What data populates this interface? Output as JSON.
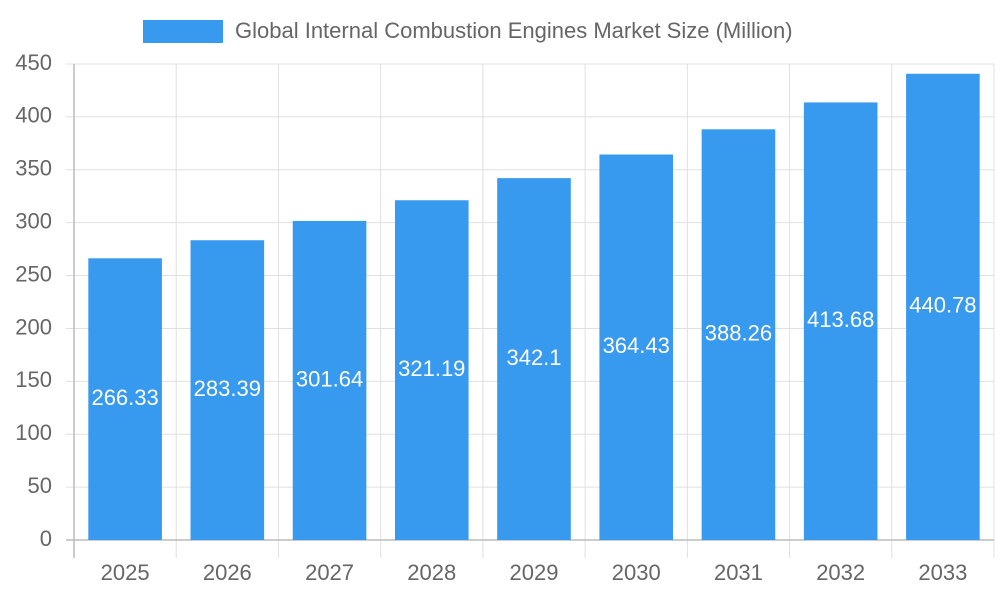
{
  "chart_data": {
    "type": "bar",
    "categories": [
      "2025",
      "2026",
      "2027",
      "2028",
      "2029",
      "2030",
      "2031",
      "2032",
      "2033"
    ],
    "series": [
      {
        "name": "Global Internal Combustion Engines Market Size (Million)",
        "color": "#389aee",
        "values": [
          266.33,
          283.39,
          301.64,
          321.19,
          342.1,
          364.43,
          388.26,
          413.68,
          440.78
        ]
      }
    ],
    "ylim": [
      0,
      450
    ],
    "yticks": [
      0,
      50,
      100,
      150,
      200,
      250,
      300,
      350,
      400,
      450
    ],
    "grid": true,
    "legend": "top",
    "data_labels": true
  }
}
